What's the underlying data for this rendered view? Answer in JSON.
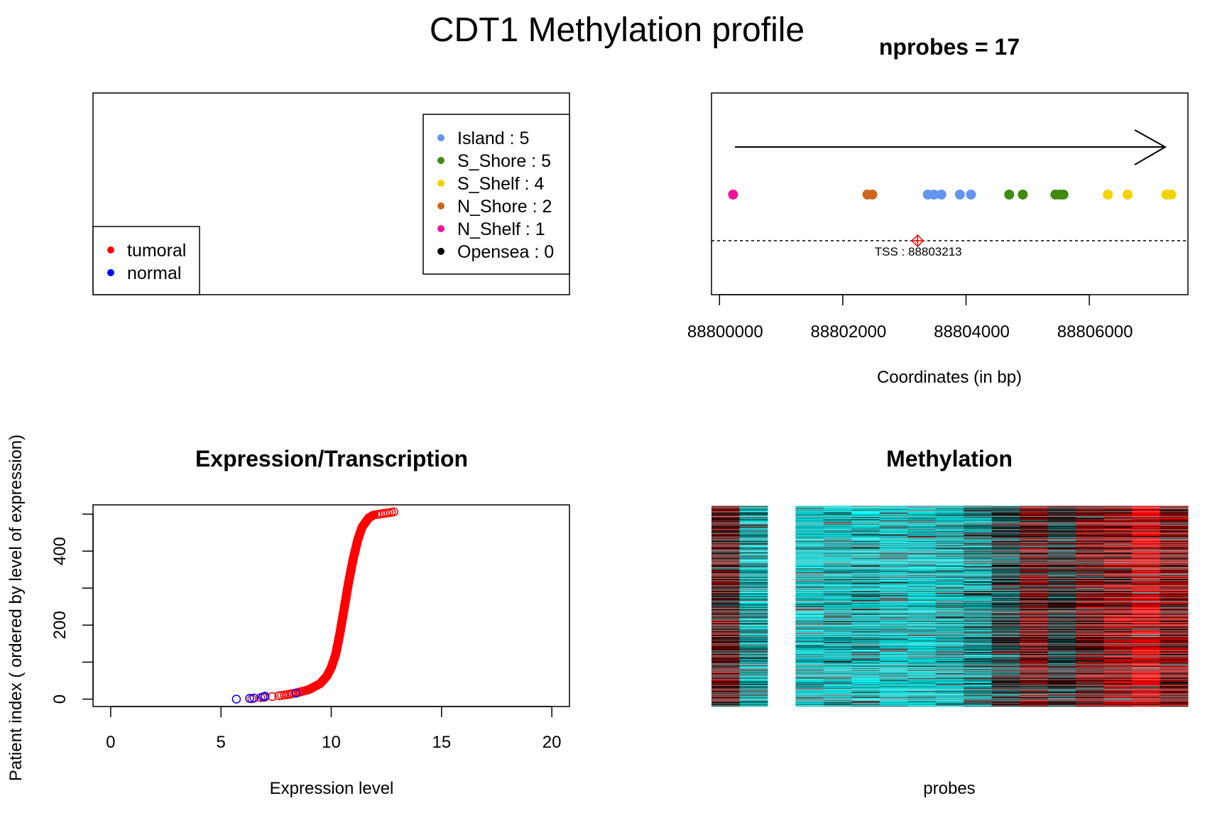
{
  "title": "CDT1 Methylation profile",
  "colors": {
    "island": "#6495ED",
    "s_shore": "#3F8A10",
    "s_shelf": "#F2D300",
    "n_shore": "#CD661D",
    "n_shelf": "#F0159A",
    "opensea": "#000000",
    "tumoral": "#FF0000",
    "normal": "#0000FF",
    "tss": "#FF0000",
    "heat_cyan": "#00FFFF",
    "heat_red": "#FF0000"
  },
  "legend_groups": {
    "items": [
      {
        "label": "tumoral",
        "color": "#FF0000"
      },
      {
        "label": "normal",
        "color": "#0000FF"
      }
    ]
  },
  "legend_cpg": {
    "items": [
      {
        "label": "Island : 5",
        "color": "#6495ED"
      },
      {
        "label": "S_Shore : 5",
        "color": "#3F8A10"
      },
      {
        "label": "S_Shelf : 4",
        "color": "#F2D300"
      },
      {
        "label": "N_Shore : 2",
        "color": "#CD661D"
      },
      {
        "label": "N_Shelf : 1",
        "color": "#F0159A"
      },
      {
        "label": "Opensea : 0",
        "color": "#000000"
      }
    ]
  },
  "chart_data": [
    {
      "type": "scatter",
      "title": "nprobes = 17",
      "xlabel": "Coordinates (in bp)",
      "ylabel": "",
      "xlim": [
        88799870,
        88807600
      ],
      "x_ticks": [
        88800000,
        88802000,
        88804000,
        88806000
      ],
      "x_tick_labels": [
        "88800000",
        "88802000",
        "88804000",
        "88806000"
      ],
      "strand": "+",
      "tss": {
        "x": 88803213,
        "label": "TSS : 88803213"
      },
      "probes": [
        {
          "x": 88800220,
          "type": "N_Shelf"
        },
        {
          "x": 88802400,
          "type": "N_Shore"
        },
        {
          "x": 88802480,
          "type": "N_Shore"
        },
        {
          "x": 88803380,
          "type": "Island"
        },
        {
          "x": 88803480,
          "type": "Island"
        },
        {
          "x": 88803600,
          "type": "Island"
        },
        {
          "x": 88803900,
          "type": "Island"
        },
        {
          "x": 88804080,
          "type": "Island"
        },
        {
          "x": 88804700,
          "type": "S_Shore"
        },
        {
          "x": 88804920,
          "type": "S_Shore"
        },
        {
          "x": 88805450,
          "type": "S_Shore"
        },
        {
          "x": 88805520,
          "type": "S_Shore"
        },
        {
          "x": 88805580,
          "type": "S_Shore"
        },
        {
          "x": 88806300,
          "type": "S_Shelf"
        },
        {
          "x": 88806620,
          "type": "S_Shelf"
        },
        {
          "x": 88807250,
          "type": "S_Shelf"
        },
        {
          "x": 88807330,
          "type": "S_Shelf"
        }
      ]
    },
    {
      "type": "scatter",
      "title": "Expression/Transcription",
      "xlabel": "Expression level",
      "ylabel": "Patient index ( ordered by level of expression)",
      "xlim": [
        -0.8,
        20.8
      ],
      "ylim": [
        -20,
        525
      ],
      "x_ticks": [
        0,
        5,
        10,
        15,
        20
      ],
      "y_ticks": [
        0,
        200,
        400
      ],
      "n_points": 507,
      "normal_points": [
        {
          "x": 5.7,
          "y": 0
        },
        {
          "x": 6.3,
          "y": 2
        },
        {
          "x": 6.5,
          "y": 3
        },
        {
          "x": 6.9,
          "y": 6
        },
        {
          "x": 7.0,
          "y": 8
        },
        {
          "x": 8.4,
          "y": 16
        }
      ],
      "tumoral_curve": [
        {
          "x": 6.4,
          "y": 1
        },
        {
          "x": 6.8,
          "y": 4
        },
        {
          "x": 7.5,
          "y": 8
        },
        {
          "x": 8.0,
          "y": 12
        },
        {
          "x": 8.5,
          "y": 18
        },
        {
          "x": 9.0,
          "y": 26
        },
        {
          "x": 9.5,
          "y": 42
        },
        {
          "x": 9.8,
          "y": 62
        },
        {
          "x": 10.0,
          "y": 85
        },
        {
          "x": 10.2,
          "y": 120
        },
        {
          "x": 10.4,
          "y": 180
        },
        {
          "x": 10.6,
          "y": 250
        },
        {
          "x": 10.8,
          "y": 320
        },
        {
          "x": 11.0,
          "y": 380
        },
        {
          "x": 11.2,
          "y": 430
        },
        {
          "x": 11.4,
          "y": 465
        },
        {
          "x": 11.7,
          "y": 490
        },
        {
          "x": 12.0,
          "y": 500
        },
        {
          "x": 12.5,
          "y": 505
        },
        {
          "x": 12.95,
          "y": 507
        }
      ]
    },
    {
      "type": "heatmap",
      "title": "Methylation",
      "xlabel": "probes",
      "ylabel": "",
      "n_probes": 17,
      "n_rows": 507,
      "missing_probe_columns": [
        2
      ],
      "column_means": [
        0.65,
        0.2,
        0.0,
        0.05,
        0.1,
        0.15,
        0.05,
        0.07,
        0.12,
        0.25,
        0.45,
        0.7,
        0.5,
        0.7,
        0.8,
        0.95,
        0.75
      ],
      "color_scale": [
        "#00FFFF",
        "#000000",
        "#FF0000"
      ]
    }
  ]
}
